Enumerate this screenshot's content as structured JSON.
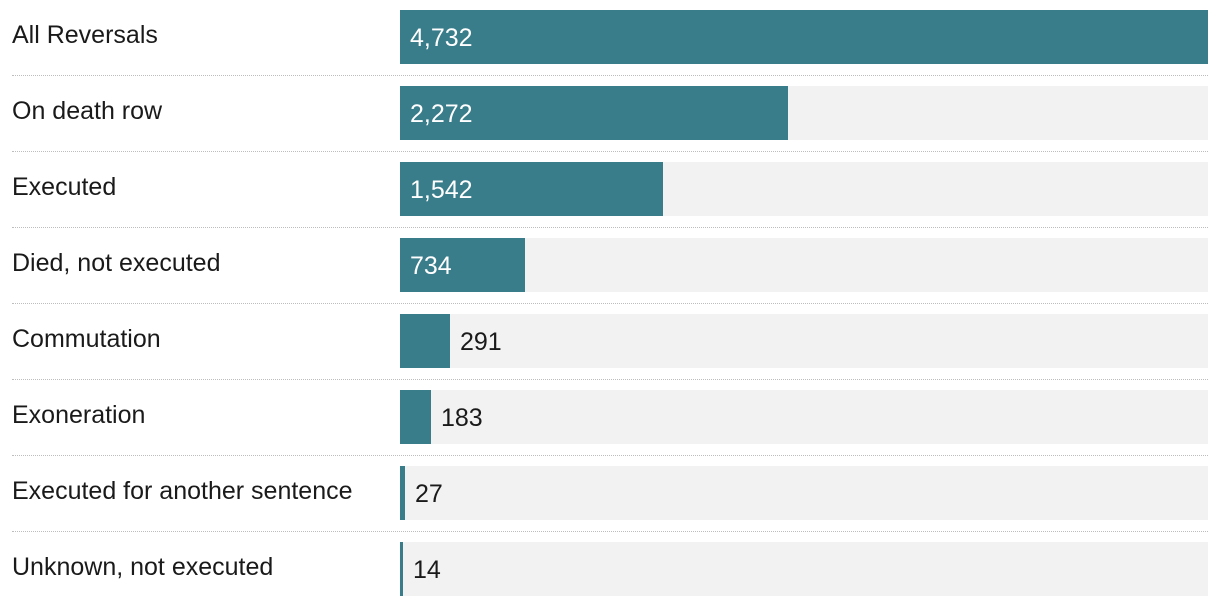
{
  "chart_data": {
    "type": "bar",
    "orientation": "horizontal",
    "categories": [
      "All Reversals",
      "On death row",
      "Executed",
      "Died, not executed",
      "Commutation",
      "Exoneration",
      "Executed for another sentence",
      "Unknown, not executed"
    ],
    "values": [
      4732,
      2272,
      1542,
      734,
      291,
      183,
      27,
      14
    ],
    "value_labels": [
      "4,732",
      "2,272",
      "1,542",
      "734",
      "291",
      "183",
      "27",
      "14"
    ],
    "xlim": [
      0,
      4732
    ],
    "grid": false,
    "bar_color": "#397c8a",
    "track_color": "#f2f2f2"
  }
}
